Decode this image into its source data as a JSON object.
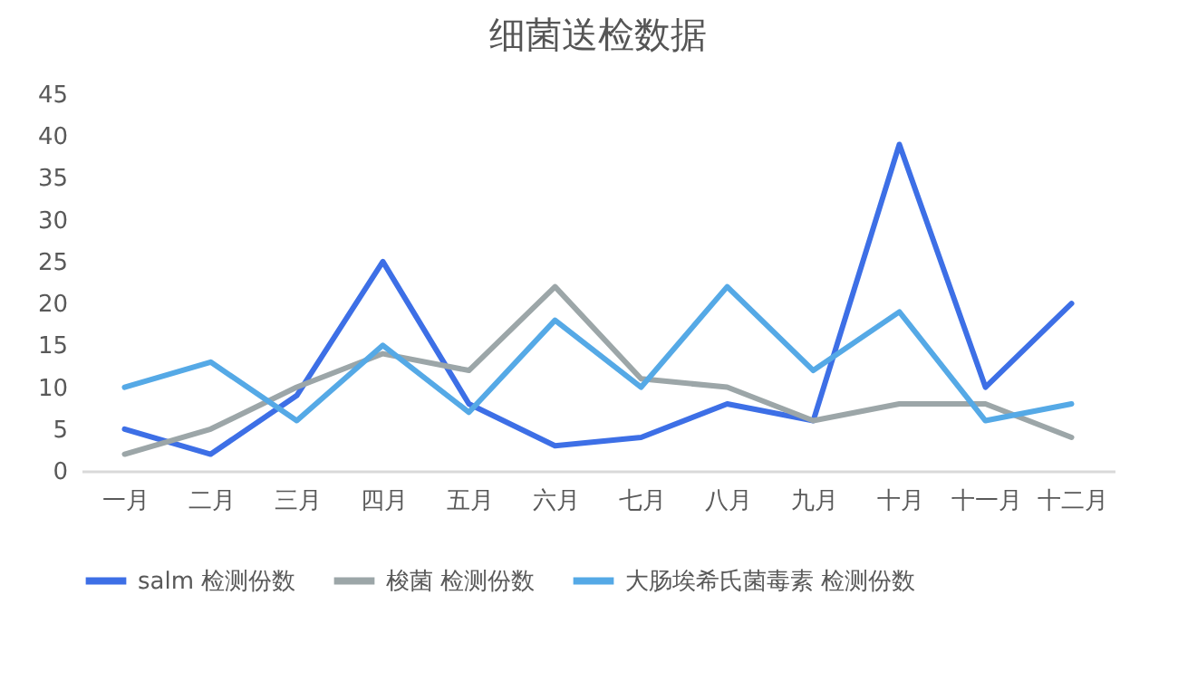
{
  "chart_data": {
    "type": "line",
    "title": "细菌送检数据",
    "categories": [
      "一月",
      "二月",
      "三月",
      "四月",
      "五月",
      "六月",
      "七月",
      "八月",
      "九月",
      "十月",
      "十一月",
      "十二月"
    ],
    "series": [
      {
        "name": "salm 检测份数",
        "color": "#3d6fe6",
        "values": [
          5,
          2,
          9,
          25,
          8,
          3,
          4,
          8,
          6,
          39,
          10,
          20
        ]
      },
      {
        "name": "梭菌 检测份数",
        "color": "#9ca6a8",
        "values": [
          2,
          5,
          10,
          14,
          12,
          22,
          11,
          10,
          6,
          8,
          8,
          4
        ]
      },
      {
        "name": "大肠埃希氏菌毒素 检测份数",
        "color": "#55a9e6",
        "values": [
          10,
          13,
          6,
          15,
          7,
          18,
          10,
          22,
          12,
          19,
          6,
          8
        ]
      }
    ],
    "ylim": [
      0,
      45
    ],
    "yticks": [
      0,
      5,
      10,
      15,
      20,
      25,
      30,
      35,
      40,
      45
    ],
    "grid": false,
    "legend": "bottom",
    "marker": "none",
    "line_style": "solid"
  }
}
